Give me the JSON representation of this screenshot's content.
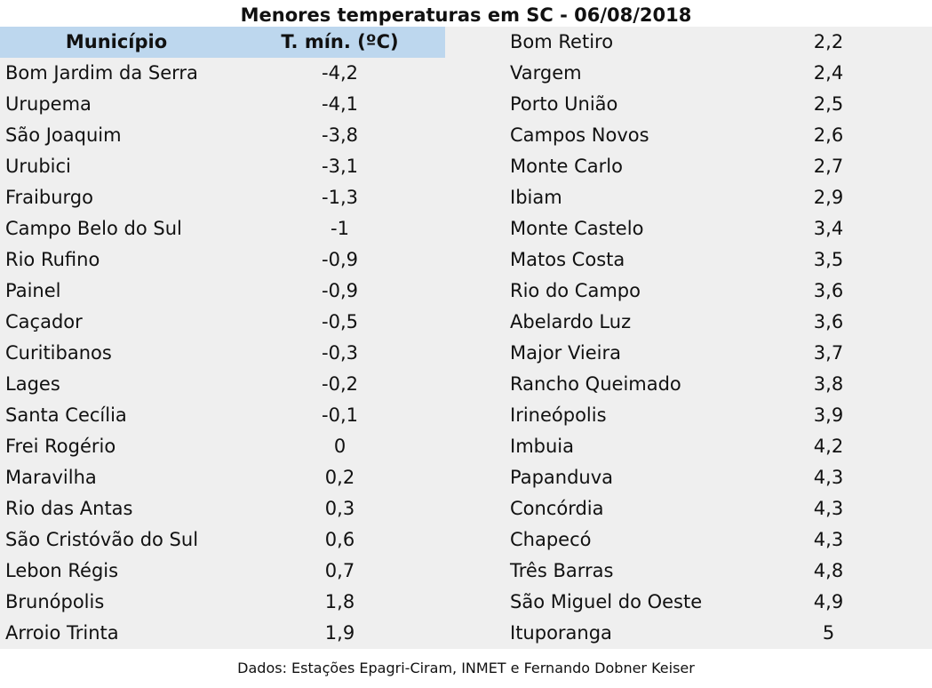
{
  "title": "Menores temperaturas em SC - 06/08/2018",
  "header": {
    "municipio": "Município",
    "tmin": "T. mín. (ºC)"
  },
  "left_rows": [
    {
      "municipio": "Bom Jardim da Serra",
      "tmin": "-4,2"
    },
    {
      "municipio": "Urupema",
      "tmin": "-4,1"
    },
    {
      "municipio": "São Joaquim",
      "tmin": "-3,8"
    },
    {
      "municipio": "Urubici",
      "tmin": "-3,1"
    },
    {
      "municipio": "Fraiburgo",
      "tmin": "-1,3"
    },
    {
      "municipio": "Campo Belo do Sul",
      "tmin": "-1"
    },
    {
      "municipio": "Rio Rufino",
      "tmin": "-0,9"
    },
    {
      "municipio": "Painel",
      "tmin": "-0,9"
    },
    {
      "municipio": "Caçador",
      "tmin": "-0,5"
    },
    {
      "municipio": "Curitibanos",
      "tmin": "-0,3"
    },
    {
      "municipio": "Lages",
      "tmin": "-0,2"
    },
    {
      "municipio": "Santa Cecília",
      "tmin": "-0,1"
    },
    {
      "municipio": "Frei Rogério",
      "tmin": "0"
    },
    {
      "municipio": "Maravilha",
      "tmin": "0,2"
    },
    {
      "municipio": "Rio das Antas",
      "tmin": "0,3"
    },
    {
      "municipio": "São Cristóvão do Sul",
      "tmin": "0,6"
    },
    {
      "municipio": "Lebon Régis",
      "tmin": "0,7"
    },
    {
      "municipio": "Brunópolis",
      "tmin": "1,8"
    },
    {
      "municipio": "Arroio Trinta",
      "tmin": "1,9"
    }
  ],
  "right_rows": [
    {
      "municipio": "Bom Retiro",
      "tmin": "2,2"
    },
    {
      "municipio": "Vargem",
      "tmin": "2,4"
    },
    {
      "municipio": "Porto União",
      "tmin": "2,5"
    },
    {
      "municipio": "Campos Novos",
      "tmin": "2,6"
    },
    {
      "municipio": "Monte Carlo",
      "tmin": "2,7"
    },
    {
      "municipio": "Ibiam",
      "tmin": "2,9"
    },
    {
      "municipio": "Monte Castelo",
      "tmin": "3,4"
    },
    {
      "municipio": "Matos Costa",
      "tmin": "3,5"
    },
    {
      "municipio": "Rio do Campo",
      "tmin": "3,6"
    },
    {
      "municipio": "Abelardo Luz",
      "tmin": "3,6"
    },
    {
      "municipio": "Major Vieira",
      "tmin": "3,7"
    },
    {
      "municipio": "Rancho Queimado",
      "tmin": "3,8"
    },
    {
      "municipio": "Irineópolis",
      "tmin": "3,9"
    },
    {
      "municipio": "Imbuia",
      "tmin": "4,2"
    },
    {
      "municipio": "Papanduva",
      "tmin": "4,3"
    },
    {
      "municipio": "Concórdia",
      "tmin": "4,3"
    },
    {
      "municipio": "Chapecó",
      "tmin": "4,3"
    },
    {
      "municipio": "Três Barras",
      "tmin": "4,8"
    },
    {
      "municipio": "São Miguel do Oeste",
      "tmin": "4,9"
    },
    {
      "municipio": "Ituporanga",
      "tmin": "5"
    }
  ],
  "footer": "Dados: Estações Epagri-Ciram, INMET e Fernando Dobner Keiser",
  "colors": {
    "header_band": "#bdd7ee",
    "table_bg": "#efefef"
  }
}
